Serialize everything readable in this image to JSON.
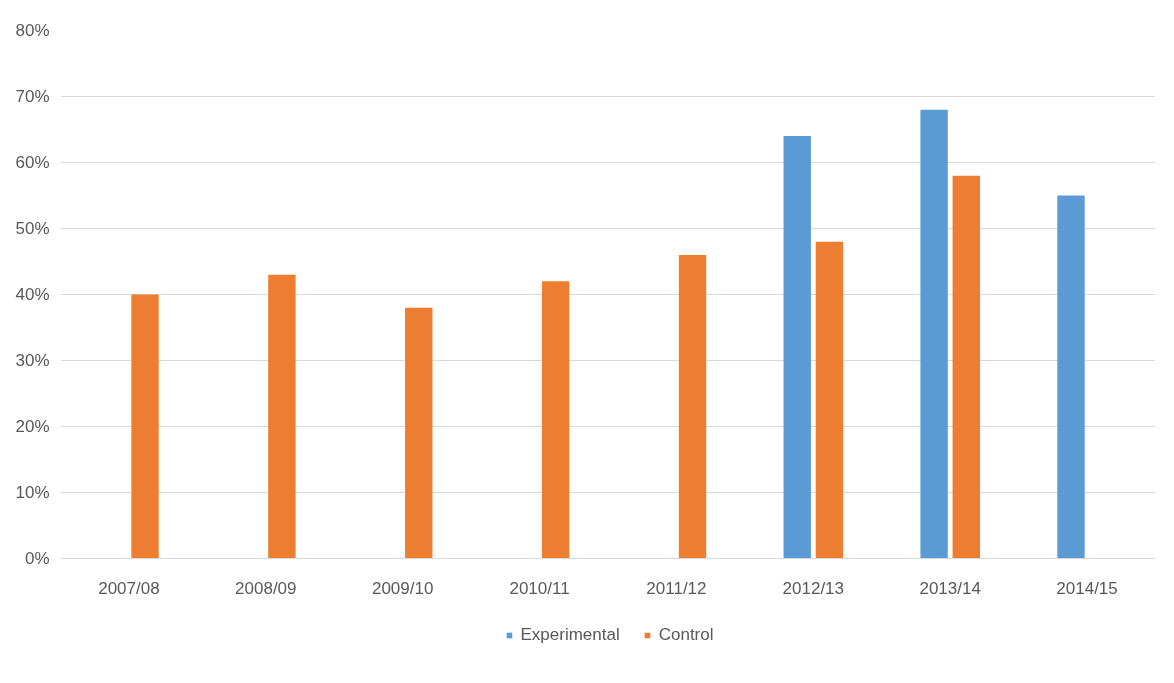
{
  "chart_data": {
    "type": "bar",
    "categories": [
      "2007/08",
      "2008/09",
      "2009/10",
      "2010/11",
      "2011/12",
      "2012/13",
      "2013/14",
      "2014/15"
    ],
    "series": [
      {
        "name": "Experimental",
        "color": "#5b9bd5",
        "values": [
          null,
          null,
          null,
          null,
          null,
          64,
          68,
          55
        ]
      },
      {
        "name": "Control",
        "color": "#ed7d31",
        "values": [
          40,
          43,
          38,
          42,
          46,
          48,
          58,
          null
        ]
      }
    ],
    "ylim": [
      0,
      80
    ],
    "yticks": [
      {
        "value": 0,
        "label": "0%"
      },
      {
        "value": 10,
        "label": "10%"
      },
      {
        "value": 20,
        "label": "20%"
      },
      {
        "value": 30,
        "label": "30%"
      },
      {
        "value": 40,
        "label": "40%"
      },
      {
        "value": 50,
        "label": "50%"
      },
      {
        "value": 60,
        "label": "60%"
      },
      {
        "value": 70,
        "label": "70%"
      },
      {
        "value": 80,
        "label": "80%"
      }
    ],
    "grid": "y",
    "legend": "bottom"
  }
}
